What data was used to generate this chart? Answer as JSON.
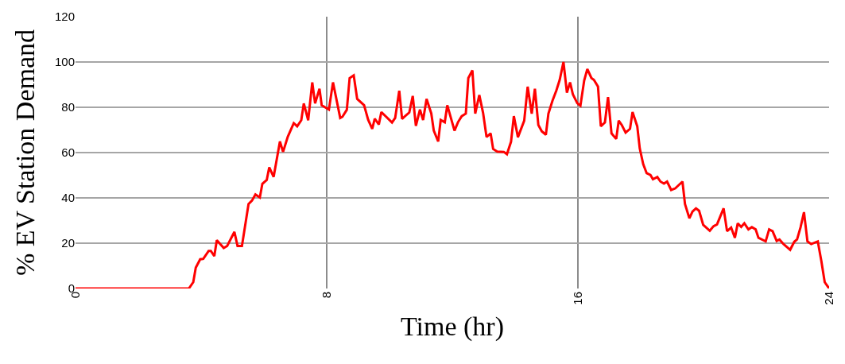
{
  "chart_data": {
    "type": "line",
    "xlabel": "Time (hr)",
    "ylabel": "% EV Station Demand",
    "xlim": [
      0,
      24
    ],
    "ylim": [
      0,
      120
    ],
    "xticks": [
      0,
      8,
      16,
      24
    ],
    "yticks": [
      0,
      20,
      40,
      60,
      80,
      100,
      120
    ],
    "grid": true,
    "marker": "none",
    "line_style": "solid",
    "series": [
      {
        "color": "#ff0000",
        "x": [
          0,
          3.61,
          3.75,
          3.83,
          3.97,
          4.07,
          4.24,
          4.31,
          4.42,
          4.5,
          4.72,
          4.83,
          5.06,
          5.16,
          5.3,
          5.51,
          5.62,
          5.73,
          5.87,
          5.95,
          6.09,
          6.17,
          6.31,
          6.51,
          6.61,
          6.76,
          6.95,
          7.06,
          7.19,
          7.27,
          7.41,
          7.54,
          7.63,
          7.77,
          7.84,
          8.07,
          8.2,
          8.43,
          8.5,
          8.64,
          8.73,
          8.86,
          8.97,
          9.19,
          9.32,
          9.45,
          9.53,
          9.66,
          9.74,
          10.08,
          10.18,
          10.31,
          10.4,
          10.63,
          10.74,
          10.84,
          10.97,
          11.07,
          11.18,
          11.33,
          11.41,
          11.55,
          11.63,
          11.76,
          11.84,
          12.07,
          12.18,
          12.3,
          12.43,
          12.51,
          12.64,
          12.73,
          12.86,
          12.98,
          13.09,
          13.22,
          13.3,
          13.43,
          13.64,
          13.74,
          13.87,
          13.96,
          14.09,
          14.29,
          14.4,
          14.53,
          14.63,
          14.74,
          14.85,
          14.98,
          15.06,
          15.19,
          15.31,
          15.42,
          15.54,
          15.65,
          15.75,
          15.84,
          15.98,
          16.08,
          16.2,
          16.3,
          16.43,
          16.51,
          16.64,
          16.73,
          16.86,
          16.96,
          17.07,
          17.22,
          17.3,
          17.4,
          17.52,
          17.66,
          17.74,
          17.89,
          17.97,
          18.08,
          18.19,
          18.31,
          18.39,
          18.53,
          18.63,
          18.74,
          18.84,
          18.97,
          19.1,
          19.33,
          19.41,
          19.55,
          19.65,
          19.76,
          19.86,
          19.99,
          20.2,
          20.32,
          20.43,
          20.64,
          20.75,
          20.88,
          21.0,
          21.09,
          21.2,
          21.3,
          21.43,
          21.54,
          21.66,
          21.75,
          21.98,
          22.09,
          22.2,
          22.33,
          22.42,
          22.55,
          22.76,
          22.89,
          22.98,
          23.09,
          23.2,
          23.31,
          23.43,
          23.64,
          23.75,
          23.86,
          24
        ],
        "values": [
          0,
          0,
          2.8,
          9.2,
          12.9,
          13.1,
          16.6,
          16.6,
          14.3,
          21.3,
          17.9,
          18.8,
          25,
          18.8,
          18.8,
          37.3,
          38.8,
          41.5,
          40.2,
          46.2,
          47.9,
          53.5,
          49.3,
          64.9,
          60.3,
          67,
          73,
          71.6,
          74.3,
          81.7,
          74.3,
          91,
          81.7,
          88.2,
          80.9,
          79,
          91,
          75.3,
          75.8,
          78.9,
          92.9,
          94.1,
          83.7,
          80.9,
          74.5,
          70.5,
          75,
          72.4,
          77.9,
          73.3,
          75.3,
          87.3,
          74.9,
          77.7,
          85,
          71.8,
          79,
          74.4,
          83.7,
          77.3,
          69.7,
          64.9,
          74.4,
          73.4,
          80.9,
          69.7,
          73.4,
          76.1,
          77.2,
          92.9,
          96.3,
          77.2,
          85.4,
          77.5,
          66.9,
          68.5,
          61.6,
          60.4,
          60.3,
          59.3,
          64.8,
          76.1,
          66.8,
          74.1,
          89.1,
          77.2,
          88.2,
          72.2,
          69.4,
          67.9,
          77.2,
          82.9,
          87.3,
          92.1,
          100,
          86.5,
          91,
          85.7,
          81.8,
          80.7,
          91.8,
          96.9,
          92.9,
          92.1,
          89.1,
          71.6,
          73.3,
          84.5,
          68.5,
          66,
          74.1,
          72.1,
          68.8,
          70.5,
          77.9,
          71.6,
          61.8,
          54.9,
          50.9,
          50.1,
          48.2,
          49.2,
          47.2,
          46.3,
          47.2,
          43.5,
          44.2,
          47.2,
          37.3,
          31,
          34,
          35.4,
          34.3,
          28.1,
          25.5,
          27.5,
          28.3,
          35.4,
          25.3,
          26.9,
          22.4,
          28.8,
          27.2,
          28.8,
          26.1,
          27.1,
          26.1,
          22.4,
          20.8,
          26.1,
          25.3,
          21,
          21.6,
          19.6,
          17.1,
          20.6,
          21.7,
          27,
          33.7,
          20.8,
          19.6,
          20.8,
          12.4,
          2.8,
          0
        ]
      }
    ]
  }
}
